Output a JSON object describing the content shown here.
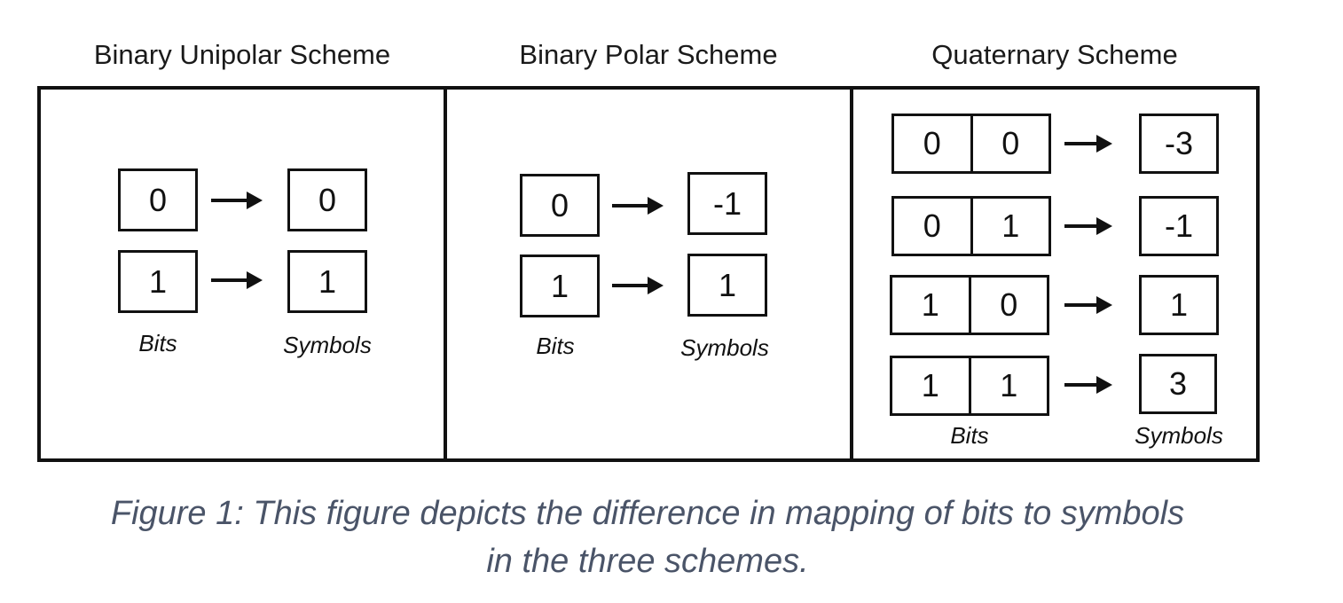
{
  "schemes": [
    {
      "title": "Binary Unipolar Scheme",
      "rows": [
        {
          "bits": [
            "0"
          ],
          "symbol": "0"
        },
        {
          "bits": [
            "1"
          ],
          "symbol": "1"
        }
      ],
      "bits_label": "Bits",
      "symbols_label": "Symbols"
    },
    {
      "title": "Binary Polar Scheme",
      "rows": [
        {
          "bits": [
            "0"
          ],
          "symbol": "-1"
        },
        {
          "bits": [
            "1"
          ],
          "symbol": "1"
        }
      ],
      "bits_label": "Bits",
      "symbols_label": "Symbols"
    },
    {
      "title": "Quaternary Scheme",
      "rows": [
        {
          "bits": [
            "0",
            "0"
          ],
          "symbol": "-3"
        },
        {
          "bits": [
            "0",
            "1"
          ],
          "symbol": "-1"
        },
        {
          "bits": [
            "1",
            "0"
          ],
          "symbol": "1"
        },
        {
          "bits": [
            "1",
            "1"
          ],
          "symbol": "3"
        }
      ],
      "bits_label": "Bits",
      "symbols_label": "Symbols"
    }
  ],
  "caption": {
    "line1": "Figure 1: This figure depicts the difference in mapping of bits to symbols",
    "line2": "in the three schemes."
  }
}
